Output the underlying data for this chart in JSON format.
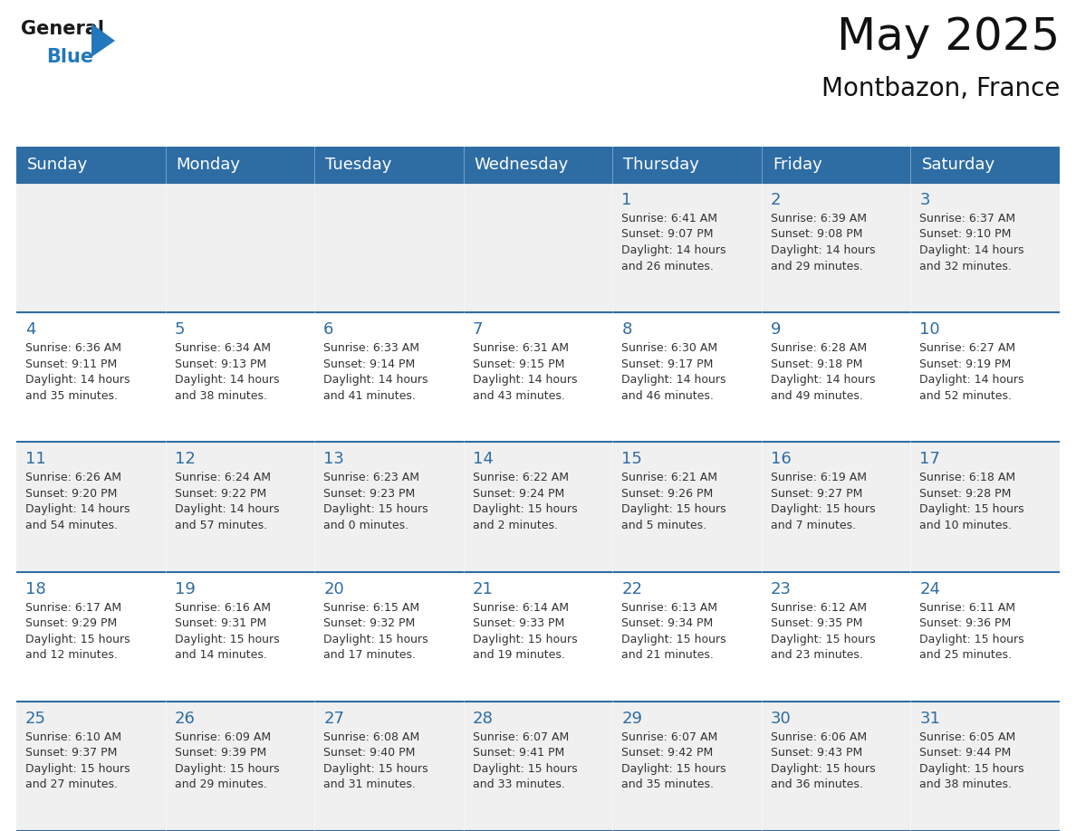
{
  "title": "May 2025",
  "subtitle": "Montbazon, France",
  "header_bg": "#2E6DA4",
  "header_text_color": "#FFFFFF",
  "cell_bg_even": "#F0F0F0",
  "cell_bg_odd": "#FFFFFF",
  "day_number_color": "#2E6DA4",
  "cell_text_color": "#333333",
  "days_of_week": [
    "Sunday",
    "Monday",
    "Tuesday",
    "Wednesday",
    "Thursday",
    "Friday",
    "Saturday"
  ],
  "weeks": [
    [
      {
        "day": "",
        "info": ""
      },
      {
        "day": "",
        "info": ""
      },
      {
        "day": "",
        "info": ""
      },
      {
        "day": "",
        "info": ""
      },
      {
        "day": "1",
        "info": "Sunrise: 6:41 AM\nSunset: 9:07 PM\nDaylight: 14 hours\nand 26 minutes."
      },
      {
        "day": "2",
        "info": "Sunrise: 6:39 AM\nSunset: 9:08 PM\nDaylight: 14 hours\nand 29 minutes."
      },
      {
        "day": "3",
        "info": "Sunrise: 6:37 AM\nSunset: 9:10 PM\nDaylight: 14 hours\nand 32 minutes."
      }
    ],
    [
      {
        "day": "4",
        "info": "Sunrise: 6:36 AM\nSunset: 9:11 PM\nDaylight: 14 hours\nand 35 minutes."
      },
      {
        "day": "5",
        "info": "Sunrise: 6:34 AM\nSunset: 9:13 PM\nDaylight: 14 hours\nand 38 minutes."
      },
      {
        "day": "6",
        "info": "Sunrise: 6:33 AM\nSunset: 9:14 PM\nDaylight: 14 hours\nand 41 minutes."
      },
      {
        "day": "7",
        "info": "Sunrise: 6:31 AM\nSunset: 9:15 PM\nDaylight: 14 hours\nand 43 minutes."
      },
      {
        "day": "8",
        "info": "Sunrise: 6:30 AM\nSunset: 9:17 PM\nDaylight: 14 hours\nand 46 minutes."
      },
      {
        "day": "9",
        "info": "Sunrise: 6:28 AM\nSunset: 9:18 PM\nDaylight: 14 hours\nand 49 minutes."
      },
      {
        "day": "10",
        "info": "Sunrise: 6:27 AM\nSunset: 9:19 PM\nDaylight: 14 hours\nand 52 minutes."
      }
    ],
    [
      {
        "day": "11",
        "info": "Sunrise: 6:26 AM\nSunset: 9:20 PM\nDaylight: 14 hours\nand 54 minutes."
      },
      {
        "day": "12",
        "info": "Sunrise: 6:24 AM\nSunset: 9:22 PM\nDaylight: 14 hours\nand 57 minutes."
      },
      {
        "day": "13",
        "info": "Sunrise: 6:23 AM\nSunset: 9:23 PM\nDaylight: 15 hours\nand 0 minutes."
      },
      {
        "day": "14",
        "info": "Sunrise: 6:22 AM\nSunset: 9:24 PM\nDaylight: 15 hours\nand 2 minutes."
      },
      {
        "day": "15",
        "info": "Sunrise: 6:21 AM\nSunset: 9:26 PM\nDaylight: 15 hours\nand 5 minutes."
      },
      {
        "day": "16",
        "info": "Sunrise: 6:19 AM\nSunset: 9:27 PM\nDaylight: 15 hours\nand 7 minutes."
      },
      {
        "day": "17",
        "info": "Sunrise: 6:18 AM\nSunset: 9:28 PM\nDaylight: 15 hours\nand 10 minutes."
      }
    ],
    [
      {
        "day": "18",
        "info": "Sunrise: 6:17 AM\nSunset: 9:29 PM\nDaylight: 15 hours\nand 12 minutes."
      },
      {
        "day": "19",
        "info": "Sunrise: 6:16 AM\nSunset: 9:31 PM\nDaylight: 15 hours\nand 14 minutes."
      },
      {
        "day": "20",
        "info": "Sunrise: 6:15 AM\nSunset: 9:32 PM\nDaylight: 15 hours\nand 17 minutes."
      },
      {
        "day": "21",
        "info": "Sunrise: 6:14 AM\nSunset: 9:33 PM\nDaylight: 15 hours\nand 19 minutes."
      },
      {
        "day": "22",
        "info": "Sunrise: 6:13 AM\nSunset: 9:34 PM\nDaylight: 15 hours\nand 21 minutes."
      },
      {
        "day": "23",
        "info": "Sunrise: 6:12 AM\nSunset: 9:35 PM\nDaylight: 15 hours\nand 23 minutes."
      },
      {
        "day": "24",
        "info": "Sunrise: 6:11 AM\nSunset: 9:36 PM\nDaylight: 15 hours\nand 25 minutes."
      }
    ],
    [
      {
        "day": "25",
        "info": "Sunrise: 6:10 AM\nSunset: 9:37 PM\nDaylight: 15 hours\nand 27 minutes."
      },
      {
        "day": "26",
        "info": "Sunrise: 6:09 AM\nSunset: 9:39 PM\nDaylight: 15 hours\nand 29 minutes."
      },
      {
        "day": "27",
        "info": "Sunrise: 6:08 AM\nSunset: 9:40 PM\nDaylight: 15 hours\nand 31 minutes."
      },
      {
        "day": "28",
        "info": "Sunrise: 6:07 AM\nSunset: 9:41 PM\nDaylight: 15 hours\nand 33 minutes."
      },
      {
        "day": "29",
        "info": "Sunrise: 6:07 AM\nSunset: 9:42 PM\nDaylight: 15 hours\nand 35 minutes."
      },
      {
        "day": "30",
        "info": "Sunrise: 6:06 AM\nSunset: 9:43 PM\nDaylight: 15 hours\nand 36 minutes."
      },
      {
        "day": "31",
        "info": "Sunrise: 6:05 AM\nSunset: 9:44 PM\nDaylight: 15 hours\nand 38 minutes."
      }
    ]
  ],
  "logo_general_color": "#1a1a1a",
  "logo_blue_color": "#2278bd",
  "logo_triangle_color": "#2278bd",
  "title_fontsize": 36,
  "subtitle_fontsize": 20,
  "header_fontsize": 13,
  "day_num_fontsize": 13,
  "cell_text_fontsize": 9
}
